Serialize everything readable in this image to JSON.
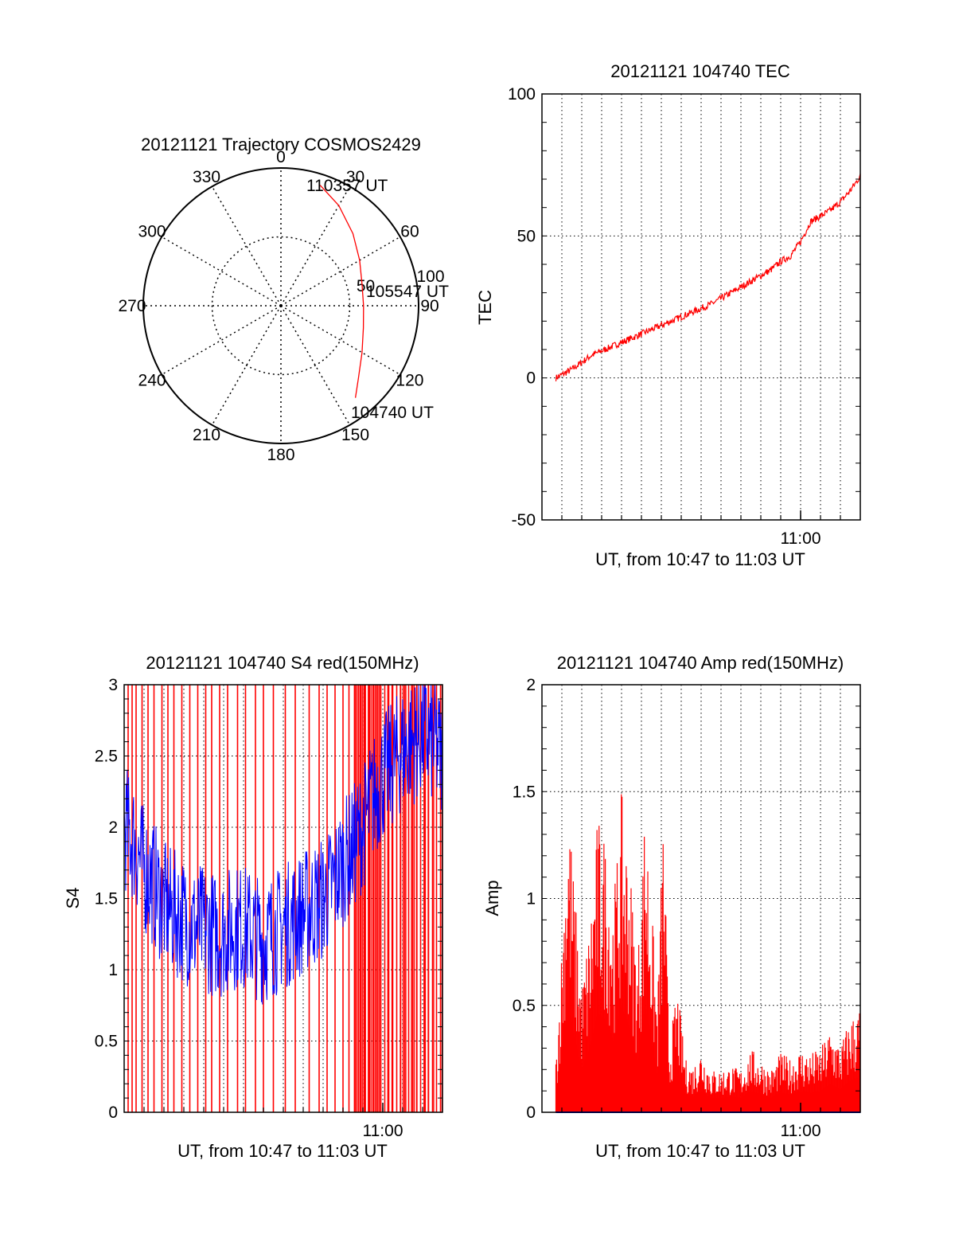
{
  "figure": {
    "colors": {
      "background": "#ffffff",
      "axes": "#000000",
      "red": "#ff0000",
      "blue": "#0000ff"
    }
  },
  "chart_data": [
    {
      "type": "polar",
      "title": "20121121 Trajectory COSMOS2429",
      "angle_labels": [
        "0",
        "30",
        "60",
        "90",
        "120",
        "150",
        "180",
        "210",
        "240",
        "270",
        "300",
        "330"
      ],
      "radius_labels": [
        "50",
        "100"
      ],
      "rlim": [
        0,
        100
      ],
      "grid": true,
      "series": [
        {
          "color": "#ff0000",
          "points": [
            {
              "az": 18,
              "r": 92
            },
            {
              "az": 30,
              "r": 84
            },
            {
              "az": 45,
              "r": 74
            },
            {
              "az": 60,
              "r": 66
            },
            {
              "az": 75,
              "r": 61
            },
            {
              "az": 90,
              "r": 60
            },
            {
              "az": 105,
              "r": 62
            },
            {
              "az": 120,
              "r": 68
            },
            {
              "az": 133,
              "r": 77
            },
            {
              "az": 141,
              "r": 86
            }
          ]
        }
      ],
      "point_labels": [
        "110357 UT",
        "105547 UT",
        "104740 UT"
      ]
    },
    {
      "type": "line",
      "title": "20121121 104740 TEC",
      "xlabel": "UT, from 10:47 to 11:03 UT",
      "ylabel": "TEC",
      "xlim": [
        0,
        16
      ],
      "x_ticks": [
        {
          "x": 13,
          "label": "11:00"
        }
      ],
      "ylim": [
        -50,
        100
      ],
      "y_ticks": [
        "-50",
        "0",
        "50",
        "100"
      ],
      "y_tick_values": [
        -50,
        0,
        50,
        100
      ],
      "grid": true,
      "series": [
        {
          "color": "#ff0000",
          "x": [
            0.7,
            1.5,
            2.5,
            3.5,
            4.5,
            5.5,
            6.5,
            7.5,
            8.5,
            9.5,
            10.5,
            11.5,
            12.0,
            12.5,
            13.0,
            13.5,
            14.0,
            14.5,
            15.0,
            15.5,
            16.0
          ],
          "y": [
            0,
            3,
            8,
            11,
            14,
            17,
            20,
            23,
            26,
            30,
            34,
            38,
            41,
            43,
            48,
            55,
            57,
            59,
            62,
            66,
            71
          ]
        }
      ]
    },
    {
      "type": "line",
      "title": "20121121 104740 S4 red(150MHz)",
      "xlabel": "UT, from 10:47 to 11:03 UT",
      "ylabel": "S4",
      "xlim": [
        0,
        16
      ],
      "x_ticks": [
        {
          "x": 13,
          "label": "11:00"
        }
      ],
      "ylim": [
        0,
        3
      ],
      "y_ticks": [
        "0",
        "0.5",
        "1",
        "1.5",
        "2",
        "2.5",
        "3"
      ],
      "y_tick_values": [
        0,
        0.5,
        1,
        1.5,
        2,
        2.5,
        3
      ],
      "grid": true,
      "series": [
        {
          "color": "#0000ff",
          "x": [
            0.0,
            0.5,
            1.0,
            1.5,
            2.0,
            2.5,
            3.0,
            3.5,
            4.0,
            4.5,
            5.0,
            5.5,
            6.0,
            6.5,
            7.0,
            7.5,
            8.0,
            8.5,
            9.0,
            9.5,
            10.0,
            10.5,
            11.0,
            11.5,
            12.0,
            12.5,
            13.0,
            13.5,
            14.0,
            14.5,
            15.0,
            15.5,
            16.0
          ],
          "y": [
            2.0,
            1.9,
            1.7,
            1.6,
            1.45,
            1.4,
            1.35,
            1.3,
            1.3,
            1.25,
            1.25,
            1.3,
            1.3,
            1.25,
            1.2,
            1.25,
            1.3,
            1.35,
            1.4,
            1.45,
            1.5,
            1.6,
            1.75,
            1.85,
            2.0,
            2.2,
            2.35,
            2.45,
            2.55,
            2.6,
            2.65,
            2.6,
            2.5
          ]
        },
        {
          "color": "#ff0000",
          "style": "spikes",
          "spike_x": [
            0.2,
            0.4,
            0.6,
            0.9,
            1.2,
            1.5,
            1.9,
            2.2,
            2.5,
            2.9,
            3.3,
            3.7,
            4.1,
            4.4,
            4.8,
            5.2,
            5.7,
            6.1,
            6.6,
            7.0,
            7.5,
            8.1,
            8.6,
            9.3,
            9.8,
            10.2,
            10.6,
            11.0,
            11.3,
            11.6,
            11.9,
            12.1,
            12.3,
            12.5,
            12.7,
            12.9,
            13.1,
            13.3,
            13.5,
            13.7,
            13.9,
            14.1,
            14.3,
            14.5,
            14.7,
            14.9,
            15.1,
            15.3,
            15.5,
            15.7,
            15.9
          ]
        }
      ]
    },
    {
      "type": "line",
      "title": "20121121 104740 Amp red(150MHz)",
      "xlabel": "UT, from 10:47 to 11:03 UT",
      "ylabel": "Amp",
      "xlim": [
        0,
        16
      ],
      "x_ticks": [
        {
          "x": 13,
          "label": "11:00"
        }
      ],
      "ylim": [
        0,
        2
      ],
      "y_ticks": [
        "0",
        "0.5",
        "1",
        "1.5",
        "2"
      ],
      "y_tick_values": [
        0,
        0.5,
        1,
        1.5,
        2
      ],
      "grid": true,
      "series": [
        {
          "color": "#ff0000",
          "style": "filled",
          "x": [
            0.7,
            1.0,
            1.3,
            1.6,
            2.0,
            2.4,
            2.8,
            3.2,
            3.6,
            4.0,
            4.4,
            4.8,
            5.2,
            5.5,
            5.8,
            6.1,
            6.4,
            6.8,
            7.2,
            7.6,
            8.0,
            8.5,
            9.0,
            9.5,
            10.0,
            10.5,
            11.0,
            11.5,
            12.0,
            12.5,
            13.0,
            13.5,
            14.0,
            14.5,
            15.0,
            15.5,
            16.0
          ],
          "y": [
            0.25,
            0.8,
            1.55,
            1.1,
            0.6,
            0.9,
            1.4,
            1.3,
            1.0,
            1.5,
            1.2,
            0.7,
            1.5,
            1.0,
            0.5,
            1.45,
            0.3,
            0.6,
            0.25,
            0.22,
            0.3,
            0.2,
            0.2,
            0.22,
            0.2,
            0.3,
            0.25,
            0.2,
            0.28,
            0.25,
            0.3,
            0.28,
            0.3,
            0.4,
            0.32,
            0.45,
            0.5
          ]
        },
        {
          "color": "#0000ff",
          "x": [
            0.7,
            16.0
          ],
          "y": [
            0,
            0
          ]
        }
      ]
    }
  ]
}
